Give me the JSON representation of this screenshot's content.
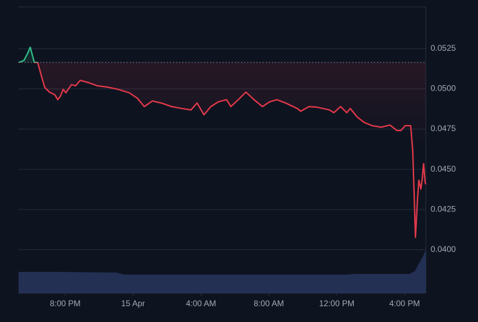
{
  "chart_data": {
    "type": "line",
    "x": [
      17.25,
      17.57,
      17.78,
      17.94,
      18.06,
      18.18,
      18.38,
      18.59,
      18.79,
      19.07,
      19.39,
      19.56,
      19.72,
      19.88,
      20.04,
      20.37,
      20.61,
      20.89,
      21.34,
      21.9,
      22.55,
      23.12,
      23.77,
      24.25,
      24.66,
      25.14,
      25.67,
      26.27,
      26.88,
      27.41,
      27.77,
      28.18,
      28.58,
      29.03,
      29.51,
      29.76,
      30.2,
      30.65,
      31.13,
      31.62,
      32.06,
      32.47,
      32.99,
      33.68,
      33.88,
      34.37,
      34.85,
      35.58,
      35.83,
      36.23,
      36.59,
      36.8,
      37.2,
      37.61,
      38.09,
      38.62,
      39.14,
      39.55,
      39.79,
      40.03,
      40.36,
      40.48,
      40.56,
      40.64,
      40.76,
      40.84,
      40.96,
      41.04,
      41.12,
      41.21,
      41.25
    ],
    "values": [
      0.05164,
      0.05177,
      0.0522,
      0.05259,
      0.05211,
      0.05164,
      0.05164,
      0.05083,
      0.0501,
      0.0498,
      0.04963,
      0.04933,
      0.04955,
      0.04997,
      0.04976,
      0.05027,
      0.05019,
      0.05053,
      0.0504,
      0.05019,
      0.0501,
      0.04997,
      0.04976,
      0.04942,
      0.0489,
      0.04925,
      0.04912,
      0.0489,
      0.04878,
      0.04869,
      0.04912,
      0.04839,
      0.0489,
      0.0492,
      0.04933,
      0.0489,
      0.04933,
      0.0498,
      0.04933,
      0.0489,
      0.0492,
      0.04933,
      0.04912,
      0.04878,
      0.04861,
      0.0489,
      0.04886,
      0.04869,
      0.04852,
      0.0489,
      0.04852,
      0.04878,
      0.04826,
      0.04792,
      0.04771,
      0.04762,
      0.04775,
      0.04741,
      0.04741,
      0.04771,
      0.04771,
      0.04612,
      0.04355,
      0.04077,
      0.04313,
      0.04432,
      0.04377,
      0.04441,
      0.04535,
      0.0442,
      0.04407
    ],
    "baseline": 0.05165,
    "up_color": "#2ebd85",
    "down_color": "#e5394a",
    "xlim": [
      17.25,
      41.25
    ],
    "ylim": [
      0.0373,
      0.0551
    ],
    "xticks": [
      {
        "value": 20,
        "label": "8:00 PM"
      },
      {
        "value": 24,
        "label": "15 Apr"
      },
      {
        "value": 28,
        "label": "4:00 AM"
      },
      {
        "value": 32,
        "label": "8:00 AM"
      },
      {
        "value": 36,
        "label": "12:00 PM"
      },
      {
        "value": 40,
        "label": "4:00 PM"
      }
    ],
    "yticks": [
      {
        "value": 0.04,
        "label": "0.0400"
      },
      0.0425,
      {
        "value": 0.045,
        "label": "0.0450"
      },
      0.0475,
      {
        "value": 0.05,
        "label": "0.0500"
      },
      0.0525
    ],
    "grid": true,
    "volume": {
      "x": [
        17.25,
        19.5,
        23.0,
        23.5,
        36.5,
        37.0,
        40.3,
        40.6,
        41.0,
        41.25
      ],
      "values": [
        31,
        31,
        30,
        27,
        27,
        28,
        28,
        32,
        50,
        62
      ],
      "lim": [
        0,
        100
      ],
      "color": "#26345a"
    }
  }
}
